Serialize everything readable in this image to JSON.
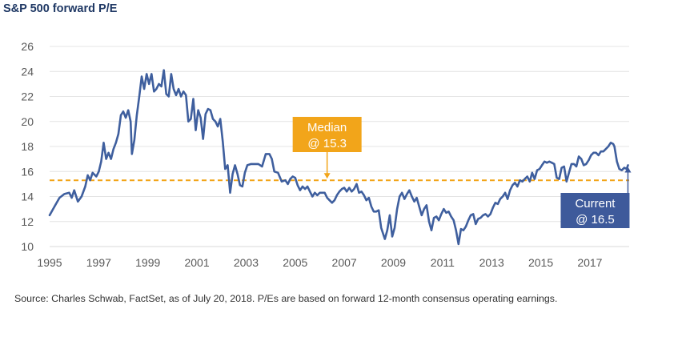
{
  "title": "S&P 500 forward P/E",
  "source": "Source: Charles Schwab, FactSet, as of July 20, 2018.  P/Es are based on forward 12-month consensus operating earnings.",
  "chart_data": {
    "type": "line",
    "title": "S&P 500 forward P/E",
    "xlim": [
      1995,
      2018.6
    ],
    "ylim": [
      10,
      26
    ],
    "x_ticks": [
      1995,
      1997,
      1999,
      2001,
      2003,
      2005,
      2007,
      2009,
      2011,
      2013,
      2015,
      2017
    ],
    "y_ticks": [
      10,
      12,
      14,
      16,
      18,
      20,
      22,
      24,
      26
    ],
    "grid": true,
    "colors": {
      "series": "#3f5f9e",
      "median": "#f2a51a",
      "current": "#3e5a9b"
    },
    "median": {
      "value": 15.3,
      "label_line1": "Median",
      "label_line2": "@ 15.3",
      "label_x": 2006.3
    },
    "current": {
      "value": 16.5,
      "label_line1": "Current",
      "label_line2": "@ 16.5"
    },
    "series": [
      {
        "points": [
          [
            1995.0,
            12.5
          ],
          [
            1995.2,
            13.2
          ],
          [
            1995.4,
            13.9
          ],
          [
            1995.6,
            14.2
          ],
          [
            1995.8,
            14.3
          ],
          [
            1995.9,
            13.9
          ],
          [
            1996.0,
            14.5
          ],
          [
            1996.15,
            13.6
          ],
          [
            1996.3,
            14.0
          ],
          [
            1996.45,
            14.8
          ],
          [
            1996.55,
            15.7
          ],
          [
            1996.65,
            15.3
          ],
          [
            1996.75,
            15.9
          ],
          [
            1996.9,
            15.6
          ],
          [
            1997.0,
            16.0
          ],
          [
            1997.1,
            16.8
          ],
          [
            1997.2,
            18.3
          ],
          [
            1997.3,
            17.0
          ],
          [
            1997.4,
            17.5
          ],
          [
            1997.5,
            17.0
          ],
          [
            1997.6,
            17.8
          ],
          [
            1997.7,
            18.3
          ],
          [
            1997.8,
            19.0
          ],
          [
            1997.9,
            20.5
          ],
          [
            1998.0,
            20.8
          ],
          [
            1998.1,
            20.3
          ],
          [
            1998.2,
            20.9
          ],
          [
            1998.3,
            20.0
          ],
          [
            1998.35,
            17.4
          ],
          [
            1998.45,
            18.5
          ],
          [
            1998.55,
            20.5
          ],
          [
            1998.65,
            22.0
          ],
          [
            1998.75,
            23.6
          ],
          [
            1998.85,
            22.6
          ],
          [
            1998.95,
            23.8
          ],
          [
            1999.05,
            23.0
          ],
          [
            1999.15,
            23.8
          ],
          [
            1999.25,
            22.4
          ],
          [
            1999.35,
            22.6
          ],
          [
            1999.45,
            23.0
          ],
          [
            1999.55,
            22.8
          ],
          [
            1999.65,
            24.1
          ],
          [
            1999.75,
            22.2
          ],
          [
            1999.85,
            22.0
          ],
          [
            1999.95,
            23.8
          ],
          [
            2000.05,
            22.6
          ],
          [
            2000.15,
            22.1
          ],
          [
            2000.25,
            22.6
          ],
          [
            2000.35,
            22.0
          ],
          [
            2000.45,
            22.4
          ],
          [
            2000.55,
            22.1
          ],
          [
            2000.65,
            20.0
          ],
          [
            2000.75,
            20.2
          ],
          [
            2000.85,
            21.8
          ],
          [
            2000.95,
            19.3
          ],
          [
            2001.05,
            20.9
          ],
          [
            2001.15,
            20.3
          ],
          [
            2001.25,
            18.6
          ],
          [
            2001.35,
            20.6
          ],
          [
            2001.45,
            21.0
          ],
          [
            2001.55,
            20.9
          ],
          [
            2001.65,
            20.2
          ],
          [
            2001.75,
            20.0
          ],
          [
            2001.85,
            19.6
          ],
          [
            2001.95,
            20.2
          ],
          [
            2002.05,
            18.4
          ],
          [
            2002.15,
            16.2
          ],
          [
            2002.25,
            16.5
          ],
          [
            2002.35,
            14.3
          ],
          [
            2002.45,
            15.8
          ],
          [
            2002.55,
            16.5
          ],
          [
            2002.65,
            15.8
          ],
          [
            2002.75,
            14.9
          ],
          [
            2002.85,
            14.8
          ],
          [
            2002.95,
            15.9
          ],
          [
            2003.05,
            16.5
          ],
          [
            2003.2,
            16.6
          ],
          [
            2003.35,
            16.6
          ],
          [
            2003.5,
            16.6
          ],
          [
            2003.65,
            16.4
          ],
          [
            2003.8,
            17.4
          ],
          [
            2003.95,
            17.4
          ],
          [
            2004.05,
            17.0
          ],
          [
            2004.15,
            16.0
          ],
          [
            2004.3,
            15.9
          ],
          [
            2004.45,
            15.2
          ],
          [
            2004.6,
            15.3
          ],
          [
            2004.7,
            15.0
          ],
          [
            2004.8,
            15.4
          ],
          [
            2004.9,
            15.6
          ],
          [
            2005.0,
            15.5
          ],
          [
            2005.1,
            14.9
          ],
          [
            2005.2,
            14.5
          ],
          [
            2005.3,
            14.8
          ],
          [
            2005.4,
            14.6
          ],
          [
            2005.5,
            14.8
          ],
          [
            2005.6,
            14.4
          ],
          [
            2005.7,
            14.0
          ],
          [
            2005.8,
            14.3
          ],
          [
            2005.9,
            14.1
          ],
          [
            2006.0,
            14.3
          ],
          [
            2006.1,
            14.3
          ],
          [
            2006.2,
            14.3
          ],
          [
            2006.3,
            13.9
          ],
          [
            2006.4,
            13.7
          ],
          [
            2006.5,
            13.5
          ],
          [
            2006.6,
            13.7
          ],
          [
            2006.7,
            14.1
          ],
          [
            2006.8,
            14.4
          ],
          [
            2006.9,
            14.6
          ],
          [
            2007.0,
            14.7
          ],
          [
            2007.1,
            14.4
          ],
          [
            2007.2,
            14.7
          ],
          [
            2007.3,
            14.4
          ],
          [
            2007.4,
            14.6
          ],
          [
            2007.5,
            15.0
          ],
          [
            2007.6,
            14.3
          ],
          [
            2007.7,
            14.4
          ],
          [
            2007.8,
            14.1
          ],
          [
            2007.9,
            13.7
          ],
          [
            2008.0,
            13.9
          ],
          [
            2008.1,
            13.2
          ],
          [
            2008.2,
            12.8
          ],
          [
            2008.3,
            12.8
          ],
          [
            2008.4,
            12.9
          ],
          [
            2008.5,
            11.5
          ],
          [
            2008.6,
            10.9
          ],
          [
            2008.65,
            10.6
          ],
          [
            2008.75,
            11.3
          ],
          [
            2008.85,
            12.5
          ],
          [
            2008.95,
            10.8
          ],
          [
            2009.05,
            11.5
          ],
          [
            2009.15,
            13.0
          ],
          [
            2009.25,
            14.0
          ],
          [
            2009.35,
            14.3
          ],
          [
            2009.45,
            13.8
          ],
          [
            2009.55,
            14.2
          ],
          [
            2009.65,
            14.5
          ],
          [
            2009.75,
            14.0
          ],
          [
            2009.85,
            13.6
          ],
          [
            2009.95,
            13.9
          ],
          [
            2010.05,
            13.2
          ],
          [
            2010.15,
            12.5
          ],
          [
            2010.25,
            13.0
          ],
          [
            2010.35,
            13.3
          ],
          [
            2010.45,
            12.0
          ],
          [
            2010.55,
            11.3
          ],
          [
            2010.65,
            12.3
          ],
          [
            2010.75,
            12.4
          ],
          [
            2010.85,
            12.1
          ],
          [
            2010.95,
            12.6
          ],
          [
            2011.05,
            13.0
          ],
          [
            2011.15,
            12.7
          ],
          [
            2011.25,
            12.8
          ],
          [
            2011.35,
            12.4
          ],
          [
            2011.45,
            12.1
          ],
          [
            2011.55,
            11.3
          ],
          [
            2011.65,
            10.2
          ],
          [
            2011.75,
            11.4
          ],
          [
            2011.85,
            11.3
          ],
          [
            2011.95,
            11.6
          ],
          [
            2012.05,
            12.1
          ],
          [
            2012.15,
            12.5
          ],
          [
            2012.25,
            12.6
          ],
          [
            2012.35,
            11.8
          ],
          [
            2012.45,
            12.2
          ],
          [
            2012.55,
            12.3
          ],
          [
            2012.65,
            12.5
          ],
          [
            2012.75,
            12.6
          ],
          [
            2012.85,
            12.4
          ],
          [
            2012.95,
            12.6
          ],
          [
            2013.05,
            13.1
          ],
          [
            2013.15,
            13.5
          ],
          [
            2013.25,
            13.4
          ],
          [
            2013.35,
            13.8
          ],
          [
            2013.45,
            14.0
          ],
          [
            2013.55,
            14.3
          ],
          [
            2013.65,
            13.8
          ],
          [
            2013.75,
            14.5
          ],
          [
            2013.85,
            14.9
          ],
          [
            2013.95,
            15.1
          ],
          [
            2014.05,
            14.8
          ],
          [
            2014.15,
            15.3
          ],
          [
            2014.25,
            15.2
          ],
          [
            2014.35,
            15.4
          ],
          [
            2014.45,
            15.6
          ],
          [
            2014.55,
            15.2
          ],
          [
            2014.65,
            15.9
          ],
          [
            2014.75,
            15.4
          ],
          [
            2014.85,
            16.1
          ],
          [
            2014.95,
            16.2
          ],
          [
            2015.05,
            16.5
          ],
          [
            2015.15,
            16.8
          ],
          [
            2015.25,
            16.7
          ],
          [
            2015.35,
            16.8
          ],
          [
            2015.45,
            16.7
          ],
          [
            2015.55,
            16.6
          ],
          [
            2015.65,
            15.5
          ],
          [
            2015.75,
            15.4
          ],
          [
            2015.85,
            16.3
          ],
          [
            2015.95,
            16.4
          ],
          [
            2016.05,
            15.2
          ],
          [
            2016.15,
            15.9
          ],
          [
            2016.25,
            16.6
          ],
          [
            2016.35,
            16.6
          ],
          [
            2016.45,
            16.4
          ],
          [
            2016.55,
            17.2
          ],
          [
            2016.65,
            17.0
          ],
          [
            2016.75,
            16.5
          ],
          [
            2016.85,
            16.6
          ],
          [
            2016.95,
            16.9
          ],
          [
            2017.05,
            17.3
          ],
          [
            2017.15,
            17.5
          ],
          [
            2017.25,
            17.5
          ],
          [
            2017.35,
            17.3
          ],
          [
            2017.45,
            17.6
          ],
          [
            2017.55,
            17.6
          ],
          [
            2017.65,
            17.8
          ],
          [
            2017.75,
            18.0
          ],
          [
            2017.85,
            18.3
          ],
          [
            2017.95,
            18.2
          ],
          [
            2018.0,
            18.0
          ],
          [
            2018.1,
            16.8
          ],
          [
            2018.2,
            16.2
          ],
          [
            2018.3,
            16.1
          ],
          [
            2018.4,
            16.3
          ],
          [
            2018.5,
            16.2
          ],
          [
            2018.55,
            16.5
          ]
        ]
      }
    ]
  }
}
